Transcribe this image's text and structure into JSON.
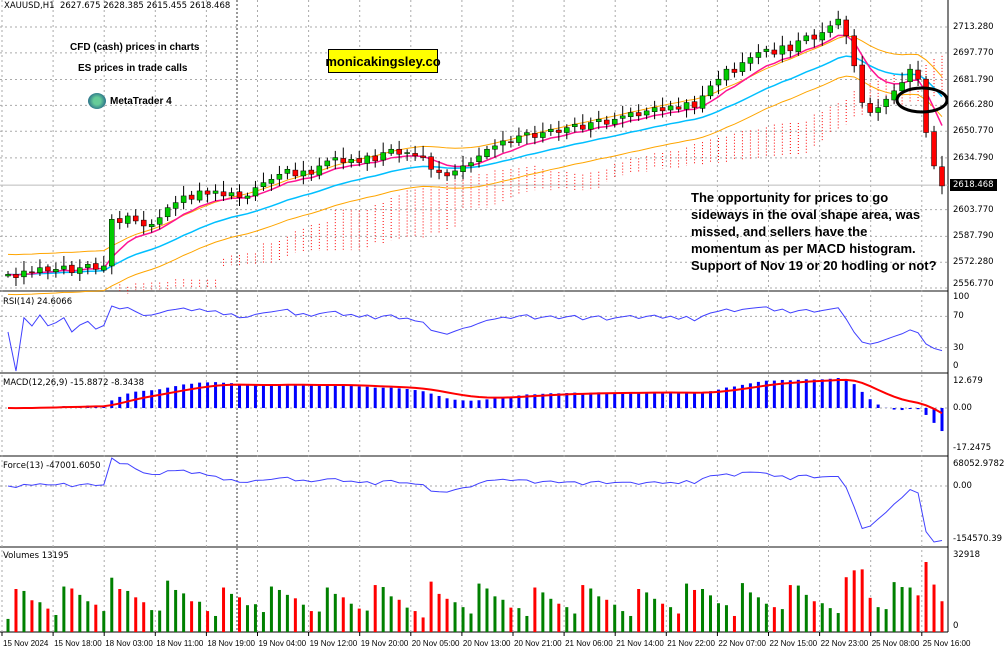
{
  "header": {
    "symbol": "XAUUSD,H1",
    "ohlc": "2627.675 2628.385 2615.455 2618.468"
  },
  "notes": {
    "line1": "CFD (cash) prices in charts",
    "line2": "ES prices in trade calls",
    "logo": "MetaTrader 4",
    "watermark": "monicakingsley.co",
    "commentary": [
      "The opportunity for prices to go",
      "sideways in the oval shape area, was",
      "missed, and sellers have the",
      "momentum as per MACD histogram.",
      "Support of Nov 19 or 20 hodling or not?"
    ]
  },
  "colors": {
    "bull": "#00cc00",
    "bear": "#ff0000",
    "ema_fast": "#ff1493",
    "ema_slow": "#00bfff",
    "envelope": "#ffa500",
    "cloud": "#ff0000",
    "rsi": "#4040ff",
    "macd_hist": "#0000ff",
    "macd_signal": "#ff0000",
    "vol_up": "#008000",
    "vol_down": "#ff0000"
  },
  "chart_data": {
    "type": "candlestick",
    "current_price": "2618.468",
    "y_ticks": [
      "2713.280",
      "2697.770",
      "2681.790",
      "2666.280",
      "2650.770",
      "2634.790",
      "2603.770",
      "2587.790",
      "2572.280",
      "2556.770"
    ],
    "ylim": [
      2556.77,
      2713.28
    ],
    "x_ticks": [
      "15 Nov 2024",
      "15 Nov 18:00",
      "18 Nov 03:00",
      "18 Nov 11:00",
      "18 Nov 19:00",
      "19 Nov 04:00",
      "19 Nov 12:00",
      "19 Nov 20:00",
      "20 Nov 05:00",
      "20 Nov 13:00",
      "20 Nov 21:00",
      "21 Nov 06:00",
      "21 Nov 14:00",
      "21 Nov 22:00",
      "22 Nov 07:00",
      "22 Nov 15:00",
      "22 Nov 23:00",
      "25 Nov 08:00",
      "25 Nov 16:00"
    ],
    "closes": [
      2565,
      2563,
      2567,
      2566,
      2569,
      2567,
      2568,
      2570,
      2566,
      2569,
      2571,
      2568,
      2570,
      2598,
      2596,
      2600,
      2597,
      2594,
      2595,
      2599,
      2605,
      2608,
      2612,
      2610,
      2615,
      2613,
      2615,
      2612,
      2614,
      2611,
      2612,
      2617,
      2620,
      2622,
      2625,
      2628,
      2624,
      2627,
      2625,
      2630,
      2633,
      2635,
      2632,
      2634,
      2632,
      2636,
      2633,
      2638,
      2640,
      2637,
      2638,
      2636,
      2635,
      2628,
      2626,
      2624,
      2627,
      2630,
      2632,
      2636,
      2640,
      2642,
      2645,
      2644,
      2648,
      2650,
      2647,
      2650,
      2652,
      2650,
      2653,
      2655,
      2652,
      2656,
      2658,
      2655,
      2658,
      2660,
      2662,
      2660,
      2663,
      2665,
      2663,
      2666,
      2664,
      2668,
      2665,
      2672,
      2678,
      2682,
      2688,
      2686,
      2692,
      2695,
      2698,
      2700,
      2697,
      2702,
      2699,
      2705,
      2708,
      2706,
      2710,
      2714,
      2718,
      2708,
      2690,
      2668,
      2662,
      2665,
      2670,
      2675,
      2680,
      2688,
      2682,
      2650,
      2630,
      2618
    ],
    "rsi": {
      "label": "RSI(14) 24.6066",
      "ticks": [
        "100",
        "70",
        "30",
        "0"
      ]
    },
    "macd": {
      "label": "MACD(12,26,9) -15.8872 -8.3438",
      "ticks": [
        "12.679",
        "0.00",
        "-17.2475"
      ]
    },
    "force": {
      "label": "Force(13) -47001.6050",
      "ticks": [
        "68052.9782",
        "0.00",
        "-154570.39"
      ]
    },
    "volumes": {
      "label": "Volumes 13195",
      "ticks": [
        "32918",
        "0"
      ]
    }
  }
}
